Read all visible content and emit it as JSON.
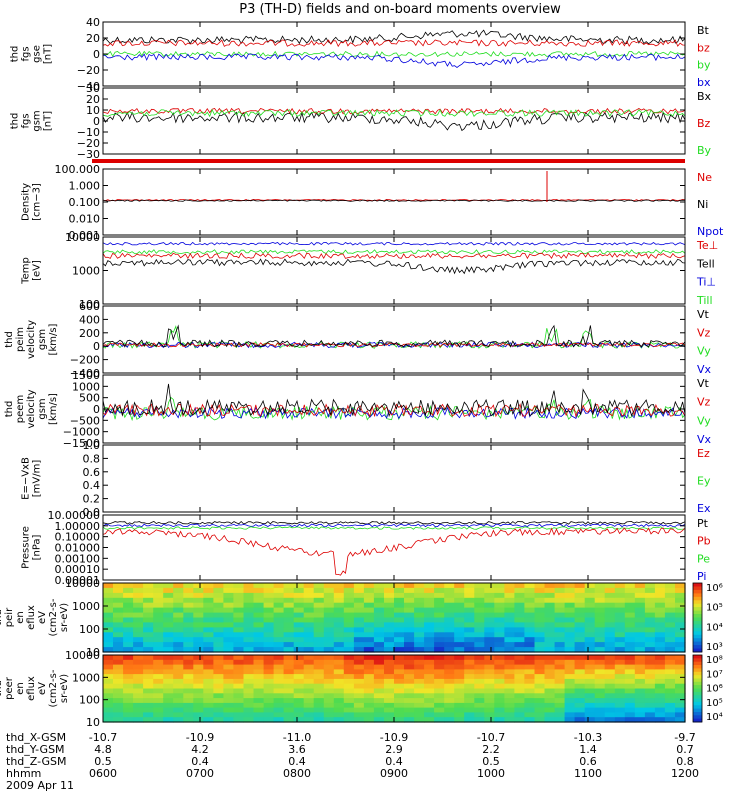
{
  "title": "P3 (TH-D) fields and on-board moments overview",
  "colors": {
    "black": "#000000",
    "red": "#dd0000",
    "green": "#22dd22",
    "blue": "#0000dd"
  },
  "chart_data": {
    "type": "line",
    "x_axis": {
      "ticks": [
        "0600",
        "0700",
        "0800",
        "0900",
        "1000",
        "1100",
        "1200"
      ],
      "rows": [
        {
          "label": "thd_X-GSM",
          "values": [
            "-10.7",
            "-10.9",
            "-11.0",
            "-10.9",
            "-10.7",
            "-10.3",
            "-9.7"
          ]
        },
        {
          "label": "thd_Y-GSM",
          "values": [
            "4.8",
            "4.2",
            "3.6",
            "2.9",
            "2.2",
            "1.4",
            "0.7"
          ]
        },
        {
          "label": "thd_Z-GSM",
          "values": [
            "0.5",
            "0.4",
            "0.4",
            "0.4",
            "0.5",
            "0.6",
            "0.8"
          ]
        },
        {
          "label": "hhmm",
          "values": []
        }
      ],
      "date": "2009 Apr 11"
    },
    "panels": [
      {
        "id": "fgs-gse",
        "ylabel": [
          "thd",
          "fgs",
          "gse",
          "[nT]"
        ],
        "ticks": [
          "40",
          "20",
          "0",
          "−20",
          "−40"
        ],
        "legend": [
          {
            "text": "Bt",
            "color": "black"
          },
          {
            "text": "bz",
            "color": "red"
          },
          {
            "text": "by",
            "color": "green"
          },
          {
            "text": "bx",
            "color": "blue"
          }
        ]
      },
      {
        "id": "fgs-gsm",
        "ylabel": [
          "thd",
          "fgs",
          "gsm",
          "[nT]"
        ],
        "ticks": [
          "30",
          "20",
          "10",
          "0",
          "−10",
          "−20",
          "−30"
        ],
        "legend": [
          {
            "text": "Bx",
            "color": "black"
          },
          {
            "text": "Bz",
            "color": "red"
          },
          {
            "text": "By",
            "color": "green"
          }
        ]
      },
      {
        "id": "density",
        "ylabel": [
          "Density",
          "[cm−3]"
        ],
        "ticks": [
          "100.000",
          "1.000",
          "0.100",
          "0.010",
          "0.001"
        ],
        "legend": [
          {
            "text": "Ne",
            "color": "red"
          },
          {
            "text": "Ni",
            "color": "black"
          },
          {
            "text": "Npot",
            "color": "blue"
          }
        ]
      },
      {
        "id": "temperature",
        "ylabel": [
          "Temp",
          "[eV]"
        ],
        "ticks": [
          "10000",
          "1000",
          "100"
        ],
        "legend": [
          {
            "text": "Te⊥",
            "color": "red"
          },
          {
            "text": "Tell",
            "color": "black"
          },
          {
            "text": "Ti⊥",
            "color": "blue"
          },
          {
            "text": "Till",
            "color": "green"
          }
        ]
      },
      {
        "id": "peim-velocity",
        "ylabel": [
          "thd",
          "peim",
          "velocity",
          "gsm",
          "[km/s]"
        ],
        "ticks": [
          "600",
          "400",
          "200",
          "0",
          "−200",
          "−400"
        ],
        "legend": [
          {
            "text": "Vt",
            "color": "black"
          },
          {
            "text": "Vz",
            "color": "red"
          },
          {
            "text": "Vy",
            "color": "green"
          },
          {
            "text": "Vx",
            "color": "blue"
          }
        ]
      },
      {
        "id": "peem-velocity",
        "ylabel": [
          "thd",
          "peem",
          "velocity",
          "gsm",
          "[km/s]"
        ],
        "ticks": [
          "1500",
          "1000",
          "500",
          "0",
          "−500",
          "−1000",
          "−1500"
        ],
        "legend": [
          {
            "text": "Vt",
            "color": "black"
          },
          {
            "text": "Vz",
            "color": "red"
          },
          {
            "text": "Vy",
            "color": "green"
          },
          {
            "text": "Vx",
            "color": "blue"
          }
        ]
      },
      {
        "id": "efield",
        "ylabel": [
          "E=−VxB",
          "[mV/m]"
        ],
        "ticks": [
          "1.0",
          "0.8",
          "0.6",
          "0.4",
          "0.2",
          "0.0"
        ],
        "legend": [
          {
            "text": "Ez",
            "color": "red"
          },
          {
            "text": "Ey",
            "color": "green"
          },
          {
            "text": "Ex",
            "color": "blue"
          }
        ]
      },
      {
        "id": "pressure",
        "ylabel": [
          "Pressure",
          "[nPa]"
        ],
        "ticks": [
          "10.00000",
          "1.00000",
          "0.10000",
          "0.01000",
          "0.00100",
          "0.00010",
          "0.00001"
        ],
        "legend": [
          {
            "text": "Pt",
            "color": "black"
          },
          {
            "text": "Pb",
            "color": "red"
          },
          {
            "text": "Pe",
            "color": "green"
          },
          {
            "text": "Pi",
            "color": "blue"
          }
        ]
      },
      {
        "id": "peir-spectrogram",
        "ylabel": [
          "thd",
          "peir",
          "en",
          "eflux",
          "eV",
          "(cm2-s-",
          "sr-eV)"
        ],
        "ticks": [
          "10000",
          "1000",
          "100",
          "10"
        ],
        "colorbar": [
          "10⁶",
          "10⁵",
          "10⁴",
          "10³"
        ]
      },
      {
        "id": "peer-spectrogram",
        "ylabel": [
          "thd",
          "peer",
          "en",
          "eflux",
          "eV",
          "(cm2-s-",
          "sr-eV)"
        ],
        "ticks": [
          "10000",
          "1000",
          "100",
          "10"
        ],
        "colorbar": [
          "10⁸",
          "10⁷",
          "10⁶",
          "10⁵",
          "10⁴"
        ]
      }
    ]
  }
}
